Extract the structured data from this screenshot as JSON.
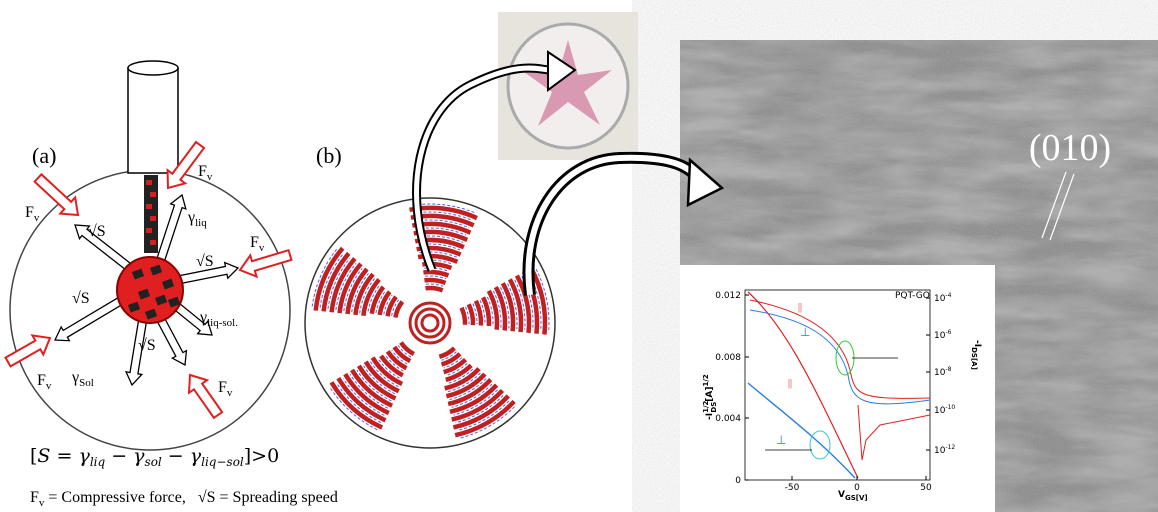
{
  "panel_a": {
    "label": "(a)",
    "forces": [
      {
        "symbol": "F",
        "subscript": "v"
      },
      {
        "symbol": "F",
        "subscript": "v"
      },
      {
        "symbol": "F",
        "subscript": "v"
      },
      {
        "symbol": "F",
        "subscript": "v"
      },
      {
        "symbol": "F",
        "subscript": "v"
      }
    ],
    "spreading": [
      "√S",
      "√S",
      "√S",
      "√S"
    ],
    "tensions": [
      {
        "symbol": "γ",
        "subscript": "liq"
      },
      {
        "symbol": "γ",
        "subscript": "liq-sol."
      },
      {
        "symbol": "γ",
        "subscript": "Sol"
      }
    ]
  },
  "panel_b": {
    "label": "(b)"
  },
  "equation": {
    "open": "[",
    "s": "S",
    "eq": " = ",
    "g1": "γ",
    "s1": "liq",
    "m1": " − ",
    "g2": "γ",
    "s2": "sol",
    "m2": " − ",
    "g3": "γ",
    "s3": "liq−sol",
    "close": "]>0"
  },
  "legend": {
    "f": "F",
    "fsub": "v",
    "fdesc": " = Compressive force,",
    "s": "√S",
    "sdesc": " = Spreading  speed"
  },
  "tem": {
    "label": "(010)"
  },
  "inset": {
    "title": "PQT-GO",
    "left_ticks": [
      "0.012",
      "0.008",
      "0.004",
      "0"
    ],
    "right_ticks": [
      {
        "base": "10",
        "exp": "-4"
      },
      {
        "base": "10",
        "exp": "-6"
      },
      {
        "base": "10",
        "exp": "-8"
      },
      {
        "base": "10",
        "exp": "-10"
      },
      {
        "base": "10",
        "exp": "-12"
      }
    ],
    "x_ticks": [
      "-50",
      "0",
      "50"
    ],
    "x_label": {
      "main": "V",
      "sub": "GS[V]"
    },
    "y_label": {
      "main": "-I",
      "sup": "1/2",
      "sub": "DS",
      "unit": "[A]",
      "unit_sup": "1/2"
    },
    "y2_label": {
      "main": "-I",
      "sub": "DS[A]"
    },
    "curve_labels": [
      "||",
      "⊥",
      "||",
      "⊥"
    ]
  }
}
